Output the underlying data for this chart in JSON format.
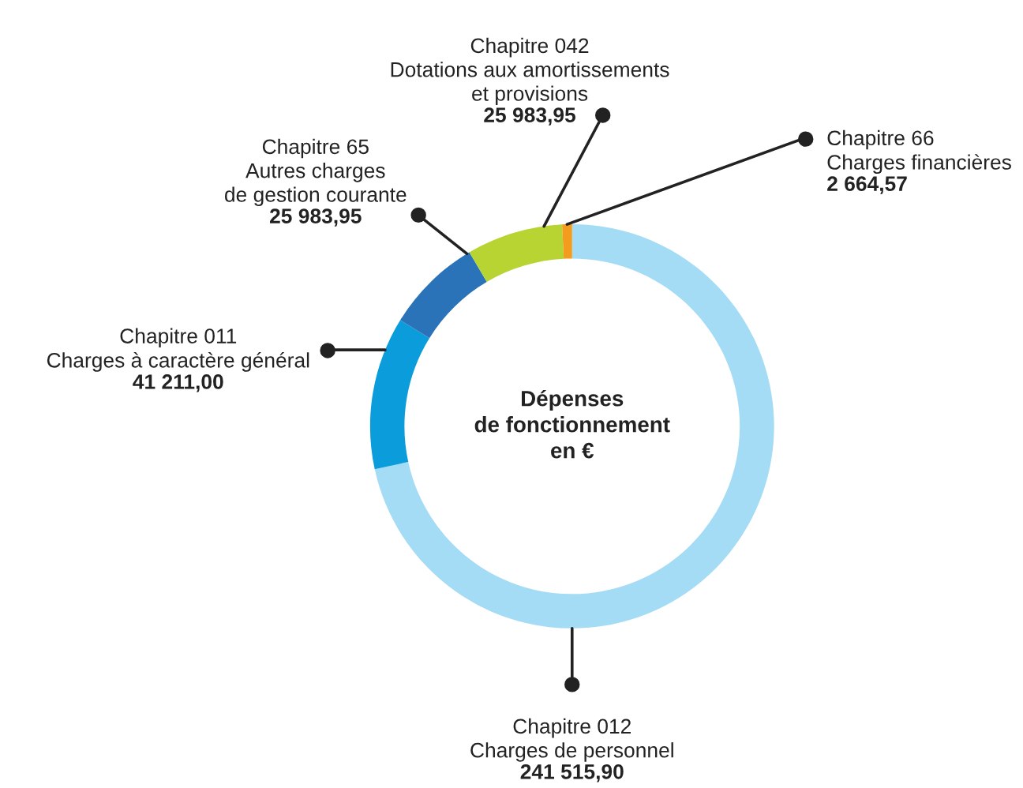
{
  "chart_data": {
    "type": "donut",
    "title": "Dépenses\nde fonctionnement\nen €",
    "categories": [
      "Chapitre 012\nCharges de personnel",
      "Chapitre 011\nCharges à caractère général",
      "Chapitre 65\nAutres charges\nde gestion courante",
      "Chapitre 042\nDotations aux amortissements\net provisions",
      "Chapitre 66\nCharges financières"
    ],
    "values": [
      241515.9,
      41211.0,
      25983.95,
      25983.95,
      2664.57
    ],
    "value_labels": [
      "241 515,90",
      "41 211,00",
      "25 983,95",
      "25 983,95",
      "2 664,57"
    ],
    "colors": [
      "#a5dcf5",
      "#0b9ddb",
      "#2b73b8",
      "#b7d433",
      "#f39c1d"
    ],
    "legend": false
  }
}
